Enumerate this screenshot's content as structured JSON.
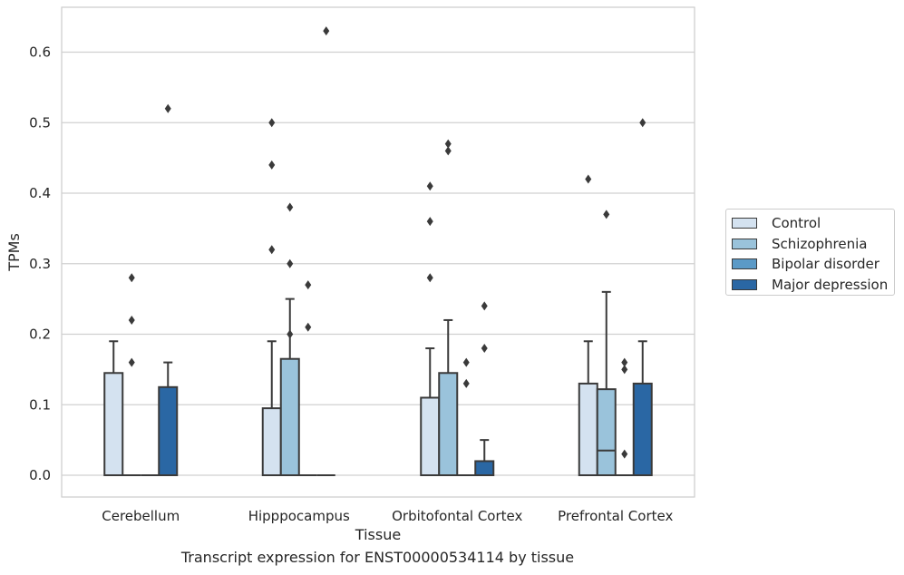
{
  "chart_data": {
    "type": "box",
    "xlabel": "Tissue",
    "ylabel": "TPMs",
    "caption": "Transcript expression for ENST00000534114 by tissue",
    "categories": [
      "Cerebellum",
      "Hipppocampus",
      "Orbitofontal Cortex",
      "Prefrontal Cortex"
    ],
    "ylim": [
      -0.03,
      0.66
    ],
    "yticks": [
      0.0,
      0.1,
      0.2,
      0.3,
      0.4,
      0.5,
      0.6
    ],
    "ytick_labels": [
      "0.0",
      "0.1",
      "0.2",
      "0.3",
      "0.4",
      "0.5",
      "0.6"
    ],
    "grid": "horizontal",
    "legend_position": "right",
    "series": [
      {
        "name": "Control",
        "color": "#d4e2f0",
        "boxes": [
          {
            "q1": 0,
            "median": 0,
            "q3": 0.145,
            "whisker_low": 0,
            "whisker_high": 0.19,
            "outliers": []
          },
          {
            "q1": 0,
            "median": 0,
            "q3": 0.095,
            "whisker_low": 0,
            "whisker_high": 0.19,
            "outliers": [
              0.32,
              0.44,
              0.5
            ]
          },
          {
            "q1": 0,
            "median": 0,
            "q3": 0.11,
            "whisker_low": 0,
            "whisker_high": 0.18,
            "outliers": [
              0.28,
              0.36,
              0.41
            ]
          },
          {
            "q1": 0,
            "median": 0,
            "q3": 0.13,
            "whisker_low": 0,
            "whisker_high": 0.19,
            "outliers": [
              0.42
            ]
          }
        ]
      },
      {
        "name": "Schizophrenia",
        "color": "#9ac3db",
        "boxes": [
          {
            "q1": 0,
            "median": 0,
            "q3": 0,
            "whisker_low": 0,
            "whisker_high": 0,
            "outliers": [
              0.16,
              0.22,
              0.28
            ]
          },
          {
            "q1": 0,
            "median": 0,
            "q3": 0.165,
            "whisker_low": 0,
            "whisker_high": 0.25,
            "outliers": [
              0.2,
              0.3,
              0.38
            ]
          },
          {
            "q1": 0,
            "median": 0,
            "q3": 0.145,
            "whisker_low": 0,
            "whisker_high": 0.22,
            "outliers": [
              0.46,
              0.47
            ]
          },
          {
            "q1": 0,
            "median": 0.035,
            "q3": 0.122,
            "whisker_low": 0,
            "whisker_high": 0.26,
            "outliers": [
              0.37
            ]
          }
        ]
      },
      {
        "name": "Bipolar disorder",
        "color": "#5b9ac7",
        "boxes": [
          {
            "q1": 0,
            "median": 0,
            "q3": 0,
            "whisker_low": 0,
            "whisker_high": 0,
            "outliers": []
          },
          {
            "q1": 0,
            "median": 0,
            "q3": 0,
            "whisker_low": 0,
            "whisker_high": 0,
            "outliers": [
              0.21,
              0.27
            ]
          },
          {
            "q1": 0,
            "median": 0,
            "q3": 0,
            "whisker_low": 0,
            "whisker_high": 0,
            "outliers": [
              0.13,
              0.16
            ]
          },
          {
            "q1": 0,
            "median": 0,
            "q3": 0,
            "whisker_low": 0,
            "whisker_high": 0,
            "outliers": [
              0.03,
              0.15,
              0.16
            ]
          }
        ]
      },
      {
        "name": "Major depression",
        "color": "#2a67a4",
        "boxes": [
          {
            "q1": 0,
            "median": 0,
            "q3": 0.125,
            "whisker_low": 0,
            "whisker_high": 0.16,
            "outliers": [
              0.52
            ]
          },
          {
            "q1": 0,
            "median": 0,
            "q3": 0,
            "whisker_low": 0,
            "whisker_high": 0,
            "outliers": [
              0.63
            ]
          },
          {
            "q1": 0,
            "median": 0,
            "q3": 0.02,
            "whisker_low": 0,
            "whisker_high": 0.05,
            "outliers": [
              0.18,
              0.24
            ]
          },
          {
            "q1": 0,
            "median": 0,
            "q3": 0.13,
            "whisker_low": 0,
            "whisker_high": 0.19,
            "outliers": [
              0.5
            ]
          }
        ]
      }
    ]
  }
}
